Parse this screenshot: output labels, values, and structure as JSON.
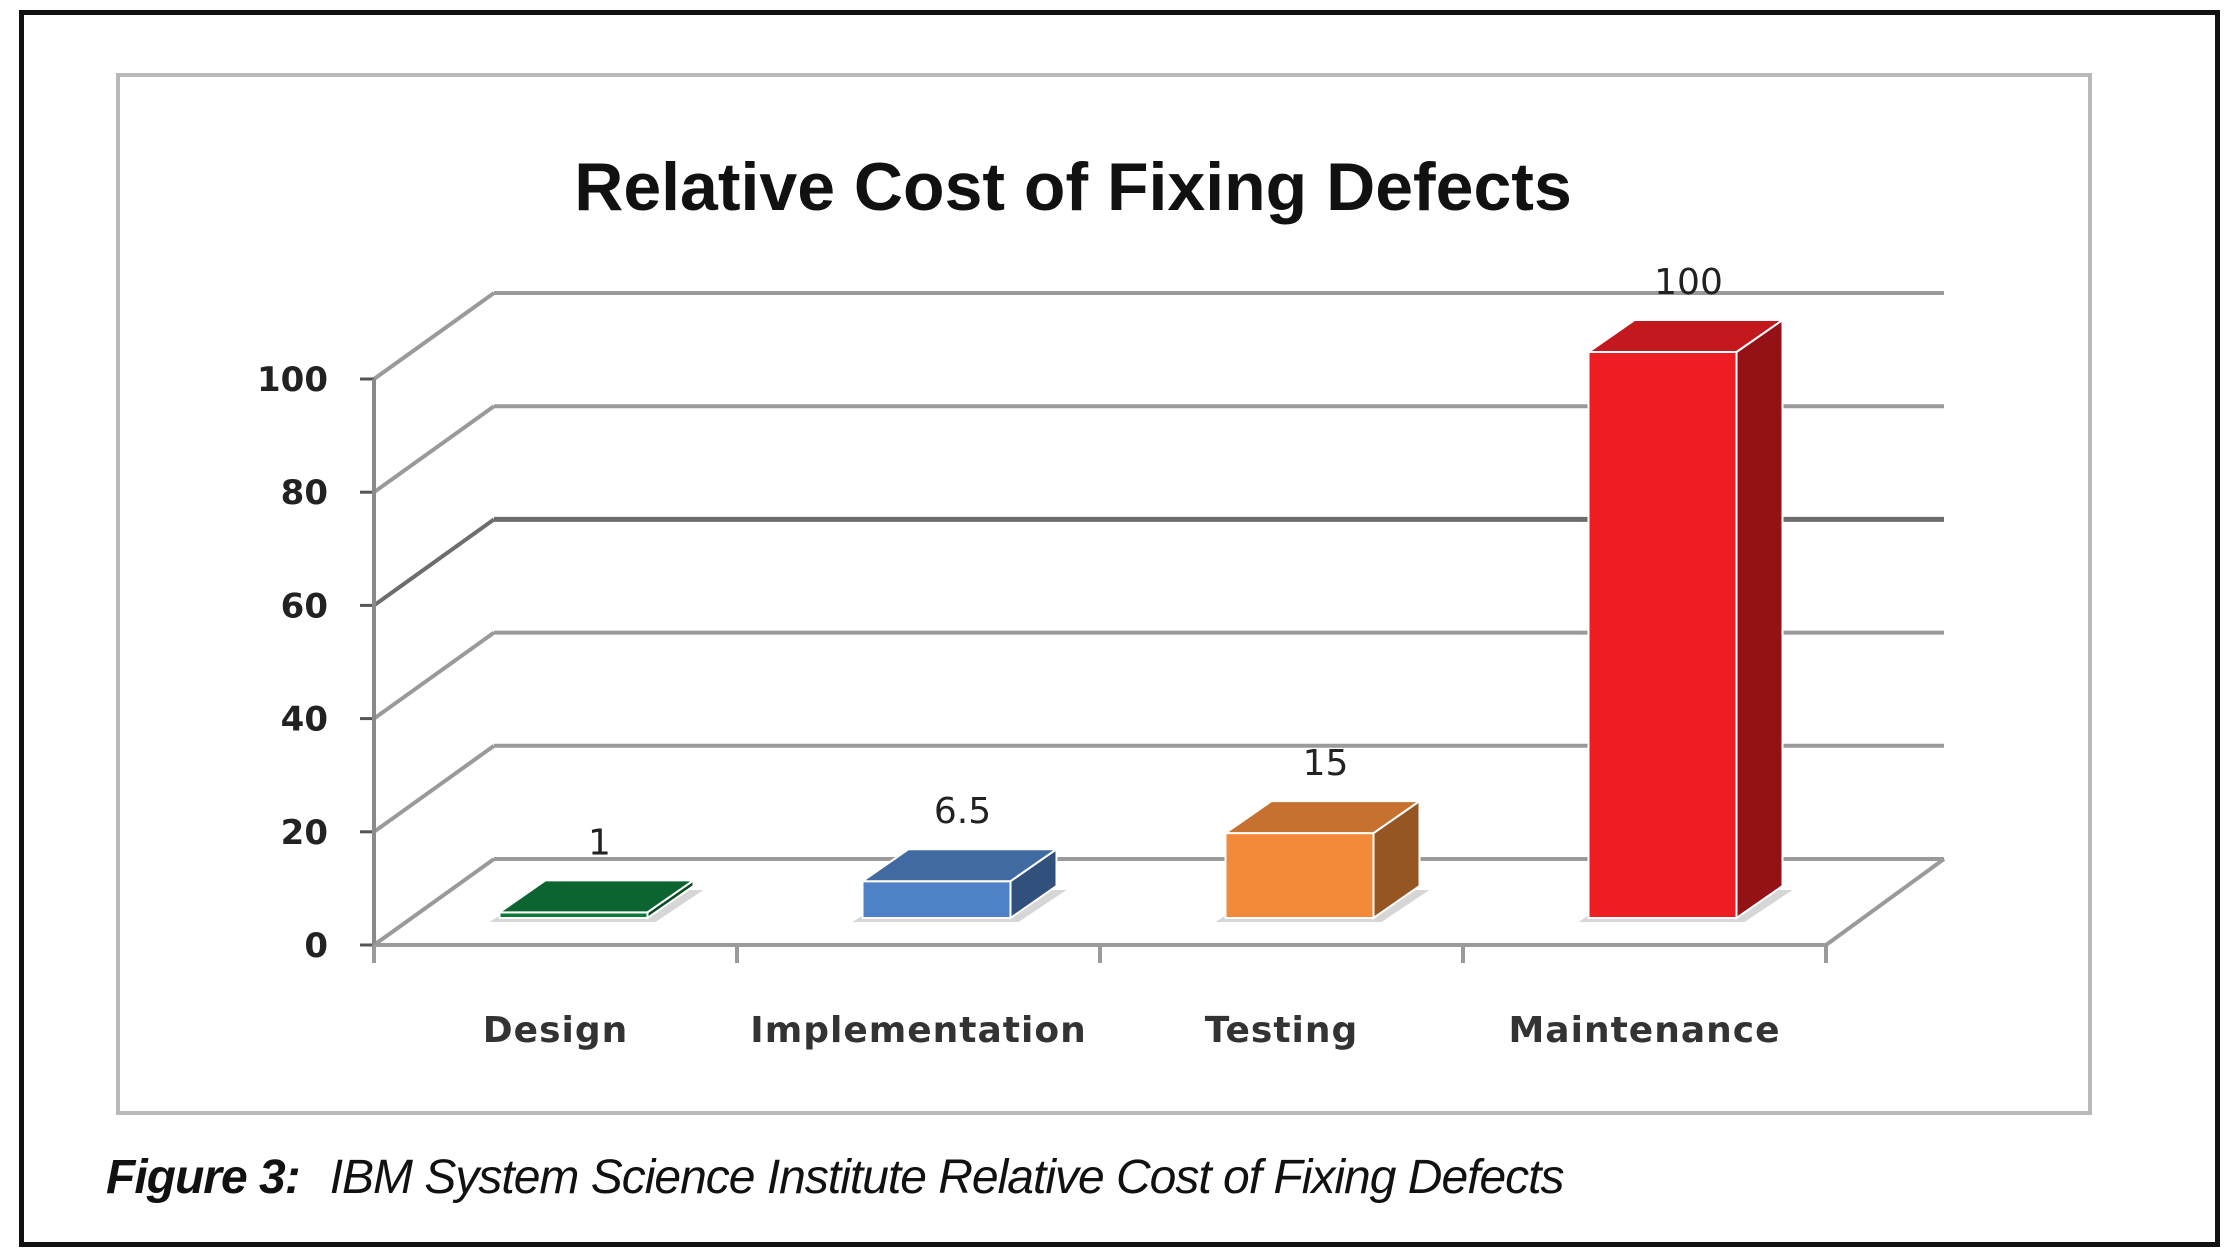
{
  "caption": {
    "label": "Figure 3:",
    "text": "IBM System Science Institute Relative Cost of Fixing Defects"
  },
  "chart_data": {
    "type": "bar",
    "title": "Relative Cost of Fixing Defects",
    "xlabel": "",
    "ylabel": "",
    "categories": [
      "Design",
      "Implementation",
      "Testing",
      "Maintenance"
    ],
    "values": [
      1,
      6.5,
      15,
      100
    ],
    "value_labels": [
      "1",
      "6.5",
      "15",
      "100"
    ],
    "ylim": [
      0,
      100
    ],
    "yticks": [
      0,
      20,
      40,
      60,
      80,
      100
    ],
    "style": "3d-column",
    "grid": true,
    "legend": "none",
    "colors": [
      "#0f7a3a",
      "#4f81c7",
      "#f28a3a",
      "#ee1d24"
    ]
  }
}
